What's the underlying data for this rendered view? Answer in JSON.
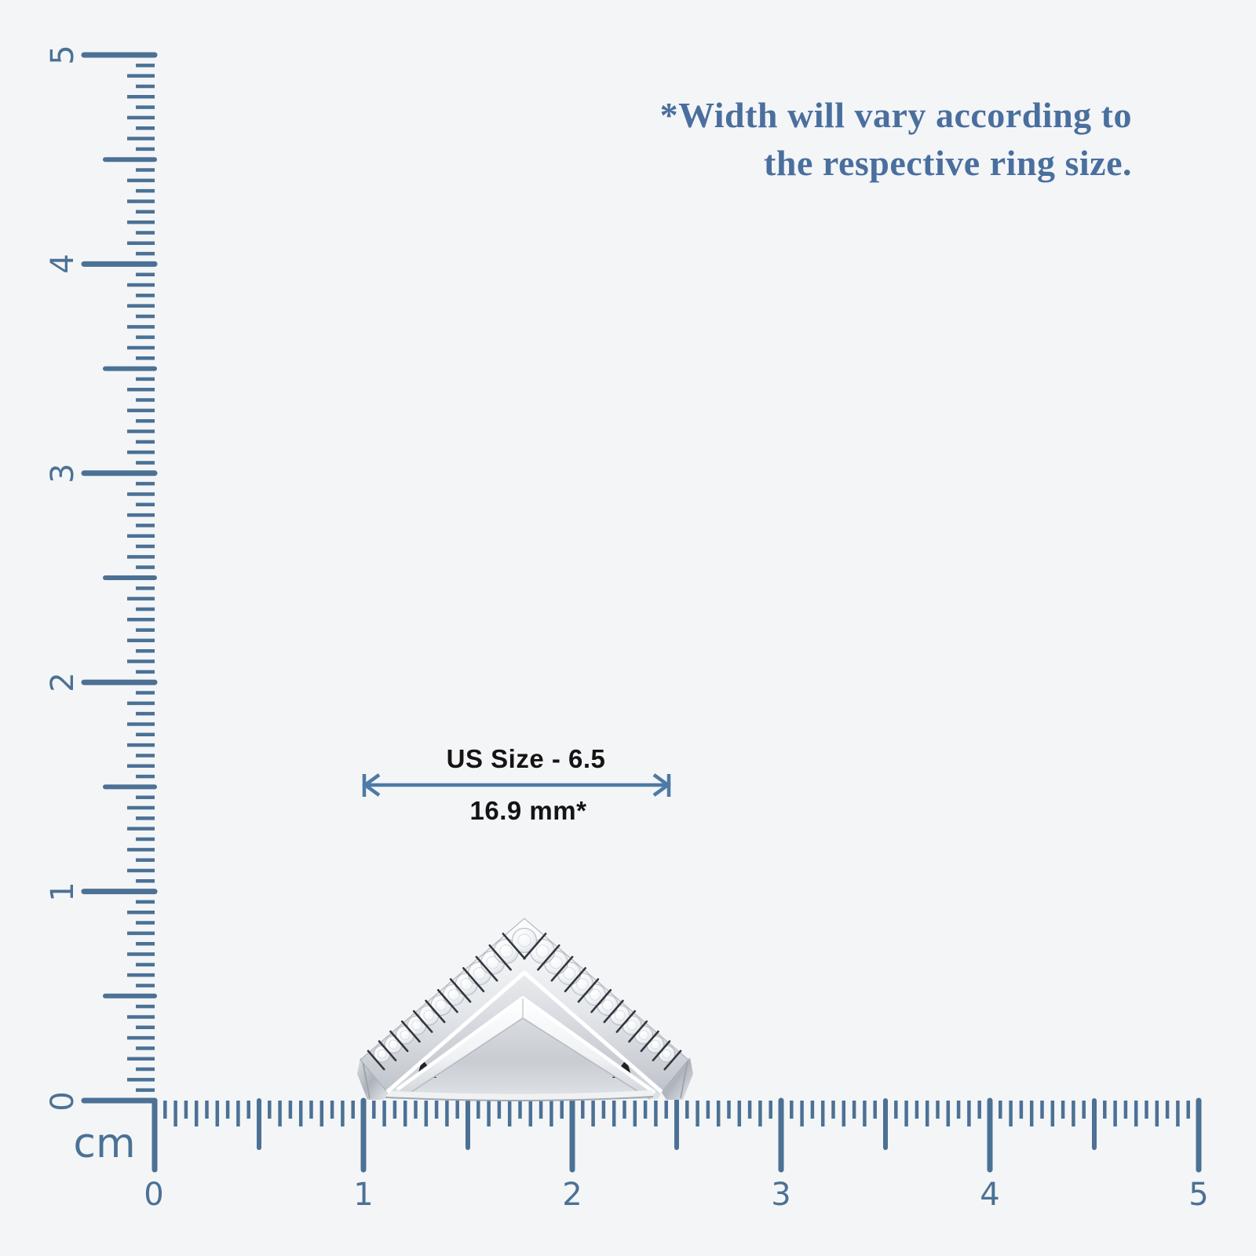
{
  "page": {
    "background": "#f4f5f7"
  },
  "note": {
    "line1": "*Width will vary according to",
    "line2": "the respective ring size.",
    "text_color": "#4a6f9e"
  },
  "measurement": {
    "size_label": "US Size - 6.5",
    "width_label": "16.9 mm*",
    "text_color": "#141414",
    "arrow_color": "#4d7aa6"
  },
  "ruler": {
    "unit": "cm",
    "color": "#4b7195",
    "vertical_labels": [
      "0",
      "1",
      "2",
      "3",
      "4",
      "5"
    ],
    "horizontal_labels": [
      "0",
      "1",
      "2",
      "3",
      "4",
      "5"
    ]
  },
  "icons": {
    "dimension_arrow": "double-headed-arrow"
  }
}
